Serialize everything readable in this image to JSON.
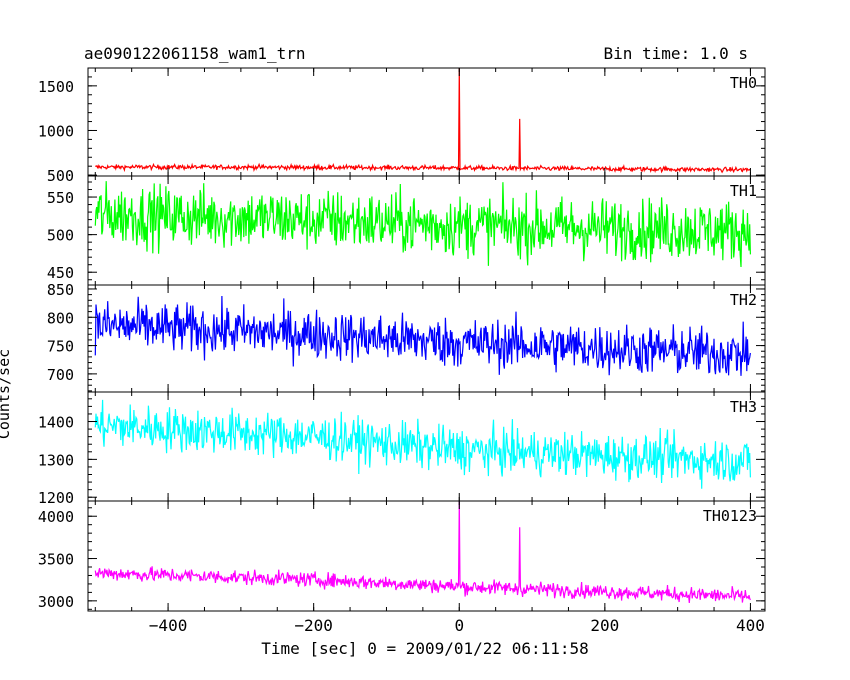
{
  "header": {
    "title": "ae090122061158_wam1_trn",
    "bin_time": "Bin time: 1.0 s"
  },
  "chart_data": {
    "type": "line",
    "xlabel": "Time [sec] 0 = 2009/01/22 06:11:58",
    "ylabel": "Counts/sec",
    "xlim": [
      -510,
      420
    ],
    "x_ticks": [
      -400,
      -200,
      0,
      200,
      400
    ],
    "x_tick_labels": [
      "−400",
      "−200",
      "0",
      "200",
      "400"
    ],
    "x_range": [
      -500,
      400
    ],
    "panels": [
      {
        "name": "TH0",
        "color": "#ff0000",
        "ylim": [
          490,
          1700
        ],
        "y_ticks": [
          500,
          1000,
          1500
        ],
        "baseline": [
          [
            -500,
            590
          ],
          [
            -300,
            590
          ],
          [
            0,
            580
          ],
          [
            400,
            560
          ]
        ],
        "noise": 25,
        "spikes": [
          {
            "x": 0,
            "y": 1700
          },
          {
            "x": 83,
            "y": 1130
          }
        ]
      },
      {
        "name": "TH1",
        "color": "#00ff00",
        "ylim": [
          433,
          578
        ],
        "y_ticks": [
          450,
          500,
          550
        ],
        "baseline": [
          [
            -500,
            527
          ],
          [
            -200,
            520
          ],
          [
            0,
            512
          ],
          [
            400,
            505
          ]
        ],
        "noise": 40,
        "spikes": []
      },
      {
        "name": "TH2",
        "color": "#0000ff",
        "ylim": [
          668,
          857
        ],
        "y_ticks": [
          700,
          750,
          800,
          850
        ],
        "baseline": [
          [
            -500,
            786
          ],
          [
            -200,
            770
          ],
          [
            0,
            755
          ],
          [
            400,
            735
          ]
        ],
        "noise": 43,
        "spikes": []
      },
      {
        "name": "TH3",
        "color": "#00ffff",
        "ylim": [
          1190,
          1478
        ],
        "y_ticks": [
          1200,
          1300,
          1400
        ],
        "baseline": [
          [
            -500,
            1390
          ],
          [
            -200,
            1360
          ],
          [
            0,
            1325
          ],
          [
            400,
            1295
          ]
        ],
        "noise": 58,
        "spikes": []
      },
      {
        "name": "TH0123",
        "color": "#ff00ff",
        "ylim": [
          2880,
          4180
        ],
        "y_ticks": [
          3000,
          3500,
          4000
        ],
        "baseline": [
          [
            -500,
            3330
          ],
          [
            -200,
            3250
          ],
          [
            0,
            3170
          ],
          [
            400,
            3050
          ]
        ],
        "noise": 85,
        "spikes": [
          {
            "x": 0,
            "y": 4180
          },
          {
            "x": 83,
            "y": 3870
          }
        ]
      }
    ]
  }
}
